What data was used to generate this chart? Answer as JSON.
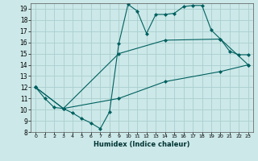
{
  "xlabel": "Humidex (Indice chaleur)",
  "bg_color": "#cce8e8",
  "grid_color": "#aacece",
  "line_color": "#006060",
  "xlim": [
    -0.5,
    23.5
  ],
  "ylim": [
    8,
    19.5
  ],
  "xticks": [
    0,
    1,
    2,
    3,
    4,
    5,
    6,
    7,
    8,
    9,
    10,
    11,
    12,
    13,
    14,
    15,
    16,
    17,
    18,
    19,
    20,
    21,
    22,
    23
  ],
  "yticks": [
    8,
    9,
    10,
    11,
    12,
    13,
    14,
    15,
    16,
    17,
    18,
    19
  ],
  "series1_x": [
    0,
    1,
    2,
    3,
    4,
    5,
    6,
    7,
    8,
    9,
    10,
    11,
    12,
    13,
    14,
    15,
    16,
    17,
    18,
    19,
    20,
    21,
    22,
    23
  ],
  "series1_y": [
    12.0,
    11.0,
    10.2,
    10.1,
    9.7,
    9.2,
    8.8,
    8.3,
    9.8,
    15.9,
    19.4,
    18.8,
    16.8,
    18.5,
    18.5,
    18.6,
    19.2,
    19.3,
    19.3,
    17.1,
    16.3,
    15.2,
    14.9,
    14.9
  ],
  "series2_x": [
    0,
    3,
    9,
    14,
    20,
    23
  ],
  "series2_y": [
    12.0,
    10.1,
    15.0,
    16.2,
    16.3,
    14.0
  ],
  "series3_x": [
    0,
    3,
    9,
    14,
    20,
    23
  ],
  "series3_y": [
    12.0,
    10.1,
    11.0,
    12.5,
    13.4,
    14.0
  ]
}
